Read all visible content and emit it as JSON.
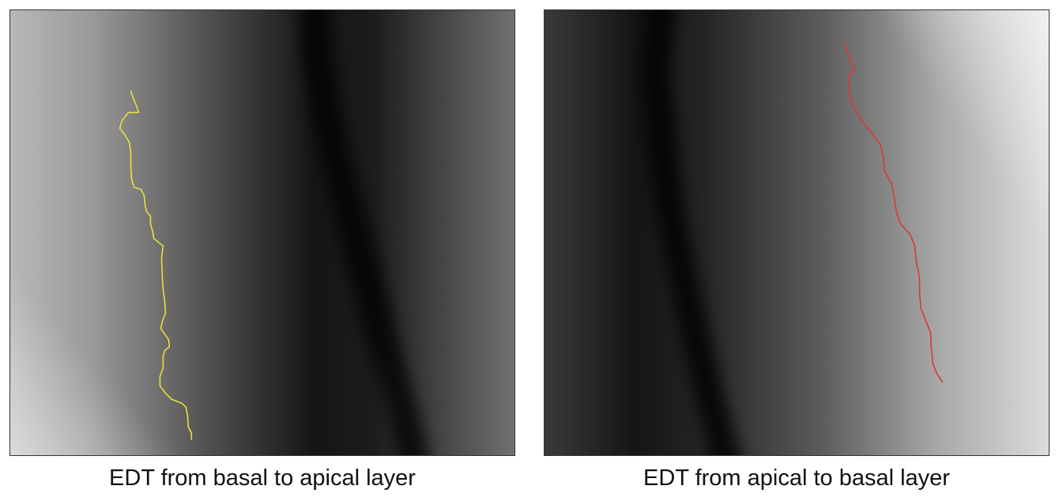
{
  "panels": [
    {
      "caption": "EDT from basal to apical layer",
      "trace_color": "#E8E03A"
    },
    {
      "caption": "EDT from apical to basal layer",
      "trace_color": "#D93A32"
    }
  ]
}
